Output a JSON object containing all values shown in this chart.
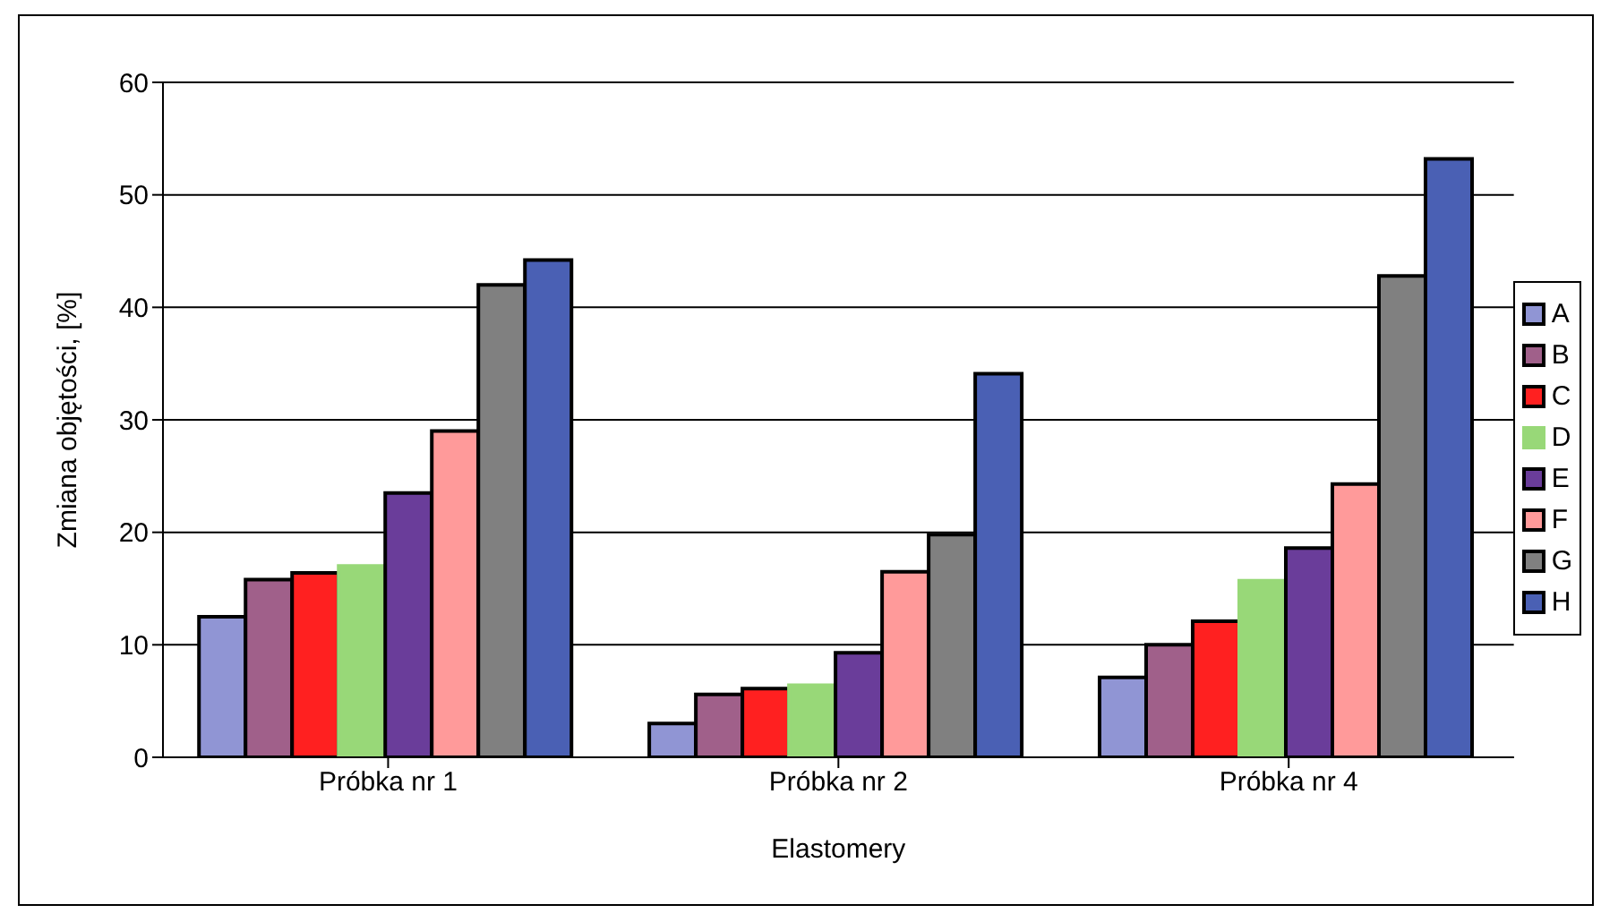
{
  "chart_data": {
    "type": "bar",
    "xlabel": "Elastomery",
    "ylabel": "Zmiana objętości, [%]",
    "categories": [
      "Próbka nr 1",
      "Próbka nr 2",
      "Próbka nr 4"
    ],
    "series": [
      {
        "name": "A",
        "color": "#9095d4",
        "values": [
          12.5,
          3.0,
          7.1
        ]
      },
      {
        "name": "B",
        "color": "#a0608a",
        "values": [
          15.8,
          5.6,
          10.0
        ]
      },
      {
        "name": "C",
        "color": "#ff2020",
        "values": [
          16.4,
          6.1,
          12.1
        ]
      },
      {
        "name": "D",
        "color": "#98d878",
        "values": [
          17.0,
          6.4,
          15.7
        ]
      },
      {
        "name": "E",
        "color": "#6a3d9a",
        "values": [
          23.5,
          9.3,
          18.6
        ]
      },
      {
        "name": "F",
        "color": "#ff9a9a",
        "values": [
          29.0,
          16.5,
          24.3
        ]
      },
      {
        "name": "G",
        "color": "#808080",
        "values": [
          42.0,
          19.8,
          42.8
        ]
      },
      {
        "name": "H",
        "color": "#4a60b4",
        "values": [
          44.2,
          34.1,
          53.2
        ]
      }
    ],
    "ylim": [
      0,
      60
    ],
    "yticks": [
      0,
      10,
      20,
      30,
      40,
      50,
      60
    ],
    "grid": "y",
    "legend": "right"
  }
}
